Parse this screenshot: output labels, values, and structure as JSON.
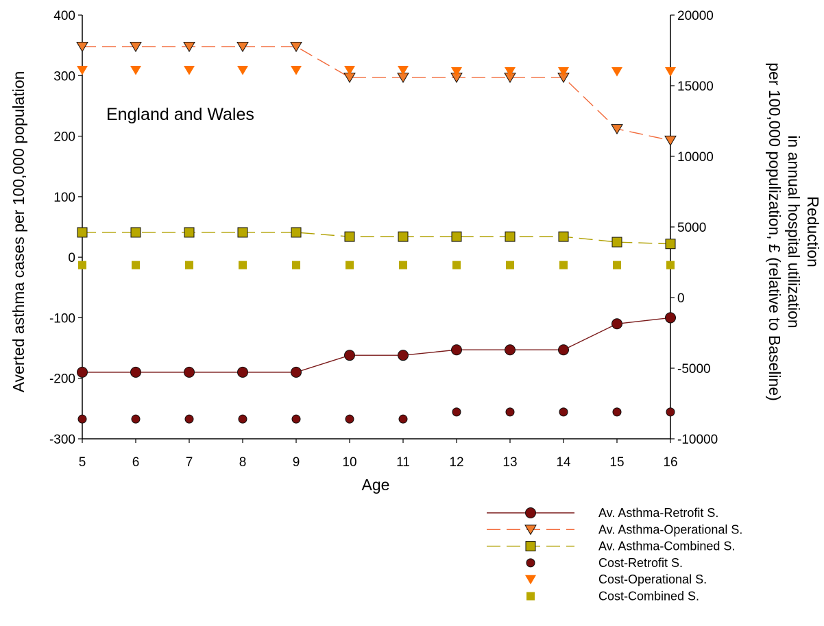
{
  "chart_data": {
    "type": "line",
    "annotation": "England and Wales",
    "xlabel": "Age",
    "ylabel_left": "Averted asthma cases per 100,000 population",
    "ylabel_right": [
      "Reduction",
      "in annual hospital utilization",
      "per 100,000 populization, £ (relative to Baseline)"
    ],
    "x": [
      5,
      6,
      7,
      8,
      9,
      10,
      11,
      12,
      13,
      14,
      15,
      16
    ],
    "xlim": [
      5,
      16
    ],
    "ylim_left": [
      -300,
      400
    ],
    "ylim_right": [
      -10000,
      20000
    ],
    "yticks_left": [
      400,
      300,
      200,
      100,
      0,
      -100,
      -200,
      -300
    ],
    "yticks_right": [
      20000,
      15000,
      10000,
      5000,
      0,
      -5000,
      -10000
    ],
    "grid": false,
    "legend_position": "bottom-right, below plot",
    "series": [
      {
        "name": "Av. Asthma-Retrofit S.",
        "axis": "left",
        "style": "solid-line-circle",
        "color": "#7a0c0c",
        "line_color": "#7a1a1a",
        "values": [
          -190,
          -190,
          -190,
          -190,
          -190,
          -162,
          -162,
          -153,
          -153,
          -153,
          -110,
          -100
        ]
      },
      {
        "name": "Av. Asthma-Operational S.",
        "axis": "left",
        "style": "dashed-line-triangle-down",
        "color": "#f07b2a",
        "line_color": "#f26a3a",
        "values": [
          348,
          348,
          348,
          348,
          348,
          297,
          297,
          297,
          297,
          297,
          212,
          193
        ]
      },
      {
        "name": "Av. Asthma-Combined S.",
        "axis": "left",
        "style": "dashed-line-square",
        "color": "#b8a800",
        "line_color": "#b0a000",
        "values": [
          41,
          41,
          41,
          41,
          41,
          34,
          34,
          34,
          34,
          34,
          25,
          22
        ]
      },
      {
        "name": "Cost-Retrofit S.",
        "axis": "right",
        "style": "marker-circle",
        "color": "#7a0c0c",
        "values": [
          -8600,
          -8600,
          -8600,
          -8600,
          -8600,
          -8600,
          -8600,
          -8100,
          -8100,
          -8100,
          -8100,
          -8100
        ]
      },
      {
        "name": "Cost-Operational S.",
        "axis": "right",
        "style": "marker-triangle-down",
        "color": "#ff6f00",
        "values": [
          16100,
          16100,
          16100,
          16100,
          16100,
          16100,
          16100,
          16000,
          16000,
          16000,
          16000,
          16000
        ]
      },
      {
        "name": "Cost-Combined S.",
        "axis": "right",
        "style": "marker-square",
        "color": "#b8a800",
        "values": [
          2300,
          2300,
          2300,
          2300,
          2300,
          2300,
          2300,
          2300,
          2300,
          2300,
          2300,
          2300
        ]
      }
    ]
  }
}
